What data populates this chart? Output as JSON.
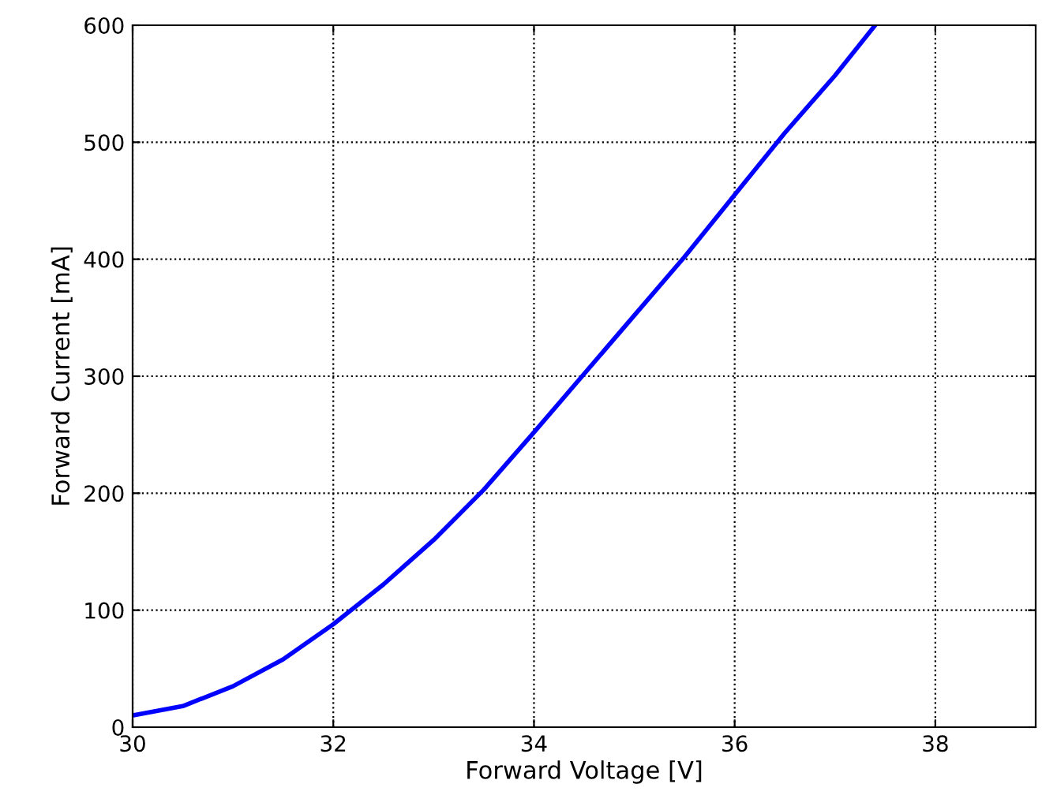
{
  "chart_data": {
    "type": "line",
    "xlabel": "Forward Voltage [V]",
    "ylabel": "Forward Current [mA]",
    "series": [
      {
        "color": "#0000ff",
        "x": [
          30,
          30.5,
          31,
          31.5,
          32,
          32.5,
          33,
          33.5,
          34,
          34.5,
          35,
          35.5,
          36,
          36.5,
          37,
          37.4
        ],
        "values": [
          10,
          18,
          35,
          58,
          88,
          122,
          160,
          203,
          252,
          302,
          352,
          402,
          455,
          508,
          557,
          600
        ]
      }
    ],
    "xlim": [
      30,
      39
    ],
    "ylim": [
      0,
      600
    ],
    "xticks": [
      30,
      32,
      34,
      36,
      38
    ],
    "yticks": [
      0,
      100,
      200,
      300,
      400,
      500,
      600
    ],
    "grid": true,
    "line_style": "solid",
    "marker": "none"
  }
}
